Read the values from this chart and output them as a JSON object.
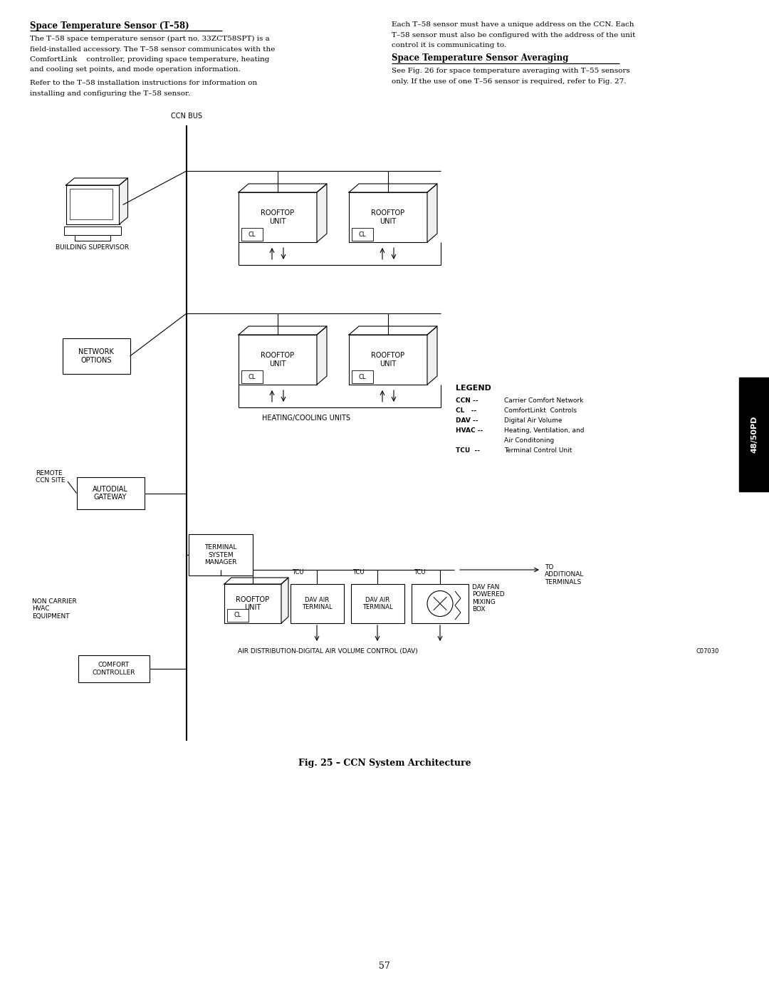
{
  "page_width": 10.8,
  "page_height": 13.97,
  "bg_color": "#ffffff",
  "title1": "Space Temperature Sensor (T–58)",
  "body1": [
    "The T–58 space temperature sensor (part no. 33ZCT58SPT) is a",
    "field-installed accessory. The T–58 sensor communicates with the",
    "ComfortLink    controller, providing space temperature, heating",
    "and cooling set points, and mode operation information."
  ],
  "body1b": [
    "Refer to the T–58 installation instructions for information on",
    "installing and configuring the T–58 sensor."
  ],
  "title2": "Space Temperature Sensor Averaging",
  "body2": [
    "Each T–58 sensor must have a unique address on the CCN. Each",
    "T–58 sensor must also be configured with the address of the unit",
    "control it is communicating to."
  ],
  "body3": [
    "See Fig. 26 for space temperature averaging with T–55 sensors",
    "only. If the use of one T–56 sensor is required, refer to Fig. 27."
  ],
  "fig_caption": "Fig. 25 – CCN System Architecture",
  "page_number": "57",
  "tab_label": "48/50PD",
  "c_code": "C07030",
  "ccn_bus_label": "CCN BUS",
  "heating_label": "HEATING/COOLING UNITS",
  "air_dist_label": "AIR DISTRIBUTION-DIGITAL AIR VOLUME CONTROL (DAV)",
  "to_additional": "TO\nADDITIONAL\nTERMINALS",
  "building_supervisor": "BUILDING SUPERVISOR",
  "network_options": "NETWORK\nOPTIONS",
  "autodial_gateway": "AUTODIAL\nGATEWAY",
  "remote_ccn": "REMOTE\nCCN SITE",
  "tsm_label": "TERMINAL\nSYSTEM\nMANAGER",
  "comfort_ctrl": "COMFORT\nCONTROLLER",
  "non_carrier": "NON CARRIER\nHVAC\nEQUIPMENT",
  "legend_title": "LEGEND",
  "legend_items": [
    [
      "CCN --",
      "Carrier Comfort Network"
    ],
    [
      "CL   --",
      "ComfortLinkt  Controls"
    ],
    [
      "DAV --",
      "Digital Air Volume"
    ],
    [
      "HVAC --",
      "Heating, Ventilation, and"
    ],
    [
      "",
      "Air Conditoning"
    ],
    [
      "TCU  --",
      "Terminal Control Unit"
    ]
  ]
}
